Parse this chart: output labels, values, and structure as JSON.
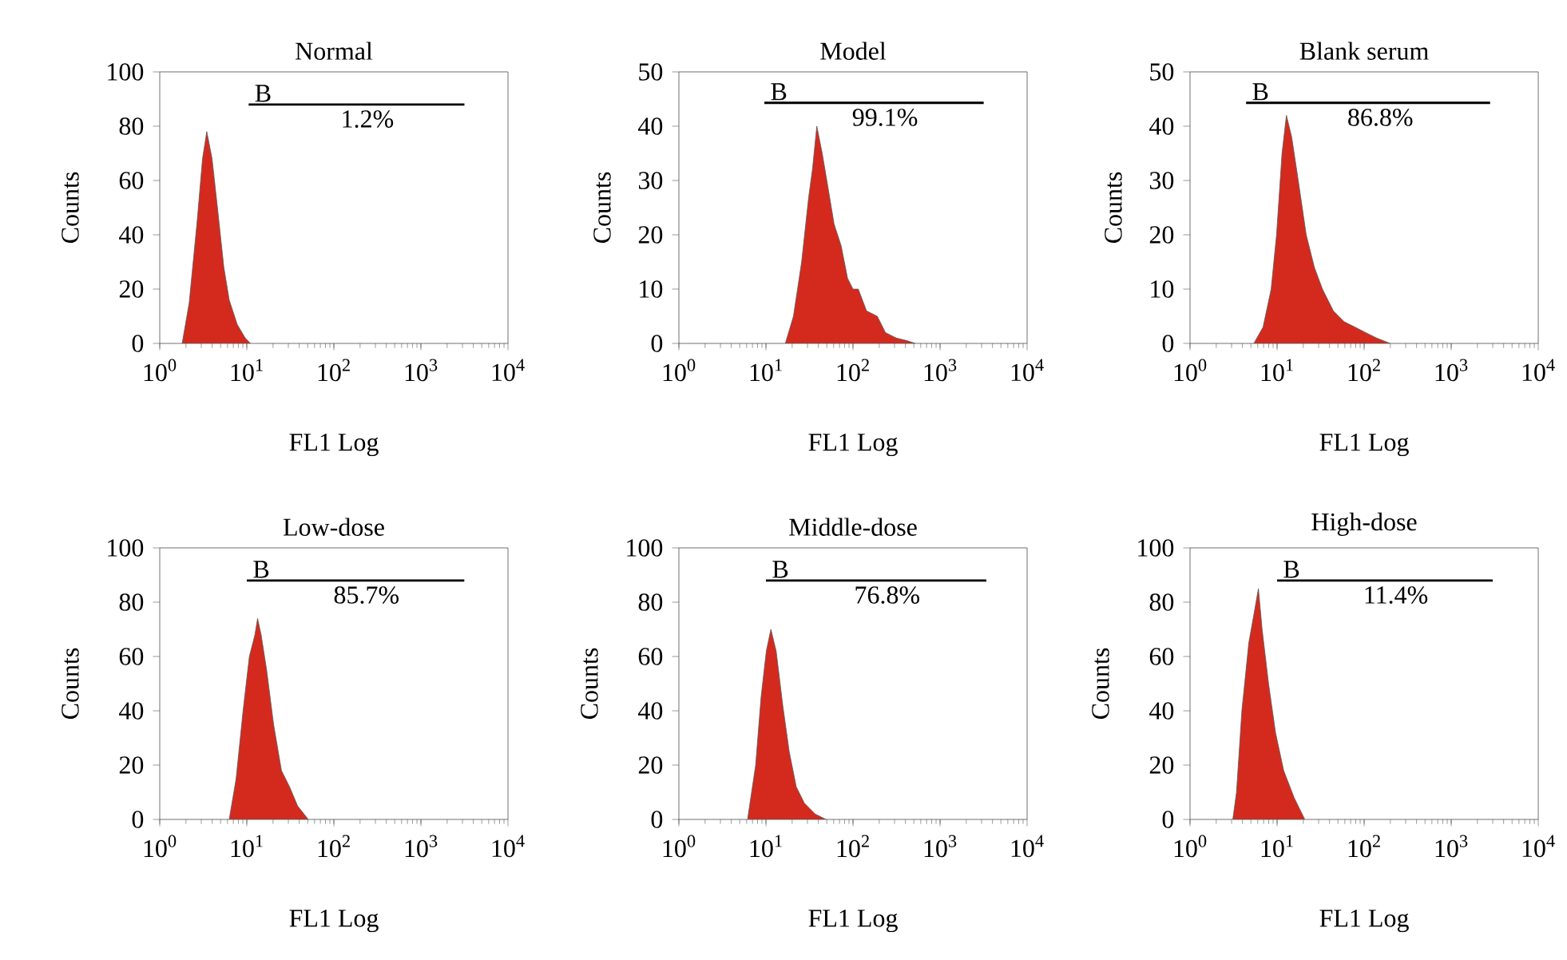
{
  "chart_data": [
    {
      "type": "area",
      "title": "Normal",
      "xlabel": "FL1 Log",
      "ylabel": "Counts",
      "log": "x",
      "xlim": [
        1,
        10000
      ],
      "ylim": [
        0,
        100
      ],
      "xticks": [
        {
          "value": 1,
          "label": "10$^{0}$"
        },
        {
          "value": 10,
          "label": "10$^{1}$"
        },
        {
          "value": 100,
          "label": "10$^{2}$"
        },
        {
          "value": 1000,
          "label": "10$^{3}$"
        },
        {
          "value": 10000,
          "label": "10$^{4}$"
        }
      ],
      "yticks": [
        0,
        20,
        40,
        60,
        80,
        100
      ],
      "series": [
        {
          "color": "#d42a1e",
          "x": [
            1.81,
            2.18,
            2.69,
            3.1,
            3.47,
            3.99,
            4.6,
            5.45,
            6.28,
            7.76,
            9.59,
            11.0
          ],
          "values": [
            0,
            15,
            45,
            68,
            78,
            68,
            50,
            28,
            16,
            7,
            2,
            0
          ]
        },
        {
          "type": "line",
          "color": "#000000",
          "x": [
            10.5,
            3160
          ],
          "values": [
            88,
            88
          ]
        }
      ],
      "annotations": [
        "B",
        "1.2%"
      ]
    },
    {
      "type": "area",
      "title": "Model",
      "xlabel": "FL1 Log",
      "ylabel": "Counts",
      "log": "x",
      "xlim": [
        1,
        10000
      ],
      "ylim": [
        0,
        50
      ],
      "xticks": [
        {
          "value": 1,
          "label": "10$^{0}$"
        },
        {
          "value": 10,
          "label": "10$^{1}$"
        },
        {
          "value": 100,
          "label": "10$^{2}$"
        },
        {
          "value": 1000,
          "label": "10$^{3}$"
        },
        {
          "value": 10000,
          "label": "10$^{4}$"
        }
      ],
      "yticks": [
        0,
        10,
        20,
        30,
        40,
        50
      ],
      "series": [
        {
          "color": "#d42a1e",
          "x": [
            16.7,
            20.7,
            25.7,
            31.0,
            34.2,
            38.4,
            44.3,
            52.5,
            60.6,
            73.0,
            86.6,
            100,
            115,
            143,
            190,
            236,
            314,
            418,
            518
          ],
          "values": [
            0,
            5,
            15,
            27,
            32,
            40,
            35,
            28,
            22,
            18,
            12,
            10,
            10,
            6,
            5,
            2,
            1,
            0.5,
            0
          ]
        },
        {
          "type": "line",
          "color": "#000000",
          "x": [
            9.6,
            3170
          ],
          "values": [
            44.3,
            44.3
          ]
        }
      ],
      "annotations": [
        "B",
        "99.1%"
      ]
    },
    {
      "type": "area",
      "title": "Blank serum",
      "xlabel": "FL1 Log",
      "ylabel": "Counts",
      "log": "x",
      "xlim": [
        1,
        10000
      ],
      "ylim": [
        0,
        50
      ],
      "xticks": [
        {
          "value": 1,
          "label": "10$^{0}$"
        },
        {
          "value": 10,
          "label": "10$^{1}$"
        },
        {
          "value": 100,
          "label": "10$^{2}$"
        },
        {
          "value": 1000,
          "label": "10$^{3}$"
        },
        {
          "value": 10000,
          "label": "10$^{4}$"
        }
      ],
      "yticks": [
        0,
        10,
        20,
        30,
        40,
        50
      ],
      "series": [
        {
          "color": "#d42a1e",
          "x": [
            5.41,
            6.9,
            8.55,
            9.86,
            11.4,
            12.8,
            14.7,
            17.5,
            21.6,
            26.8,
            33.2,
            44.3,
            58.9,
            78.4,
            104,
            139,
            199
          ],
          "values": [
            0,
            3,
            10,
            20,
            35,
            42,
            38,
            30,
            20,
            14,
            10,
            6,
            4,
            3,
            2,
            1,
            0
          ]
        },
        {
          "type": "line",
          "color": "#000000",
          "x": [
            4.4,
            2800
          ],
          "values": [
            44.3,
            44.3
          ]
        }
      ],
      "annotations": [
        "B",
        "86.8%"
      ]
    },
    {
      "type": "area",
      "title": "Low-dose",
      "xlabel": "FL1 Log",
      "ylabel": "Counts",
      "log": "x",
      "xlim": [
        1,
        10000
      ],
      "ylim": [
        0,
        100
      ],
      "xticks": [
        {
          "value": 1,
          "label": "10$^{0}$"
        },
        {
          "value": 10,
          "label": "10$^{1}$"
        },
        {
          "value": 100,
          "label": "10$^{2}$"
        },
        {
          "value": 1000,
          "label": "10$^{3}$"
        },
        {
          "value": 10000,
          "label": "10$^{4}$"
        }
      ],
      "yticks": [
        0,
        20,
        40,
        60,
        80,
        100
      ],
      "series": [
        {
          "color": "#d42a1e",
          "x": [
            6.28,
            7.54,
            9.06,
            10.7,
            12.4,
            13.3,
            14.6,
            16.9,
            20.3,
            25.0,
            31.0,
            38.3,
            50.8
          ],
          "values": [
            0,
            15,
            40,
            60,
            68,
            74,
            68,
            55,
            35,
            18,
            12,
            5,
            0
          ]
        },
        {
          "type": "line",
          "color": "#000000",
          "x": [
            10,
            3150
          ],
          "values": [
            88,
            88
          ]
        }
      ],
      "annotations": [
        "B",
        "85.7%"
      ]
    },
    {
      "type": "area",
      "title": "Middle-dose",
      "xlabel": "FL1 Log",
      "ylabel": "Counts",
      "log": "x",
      "xlim": [
        1,
        10000
      ],
      "ylim": [
        0,
        100
      ],
      "xticks": [
        {
          "value": 1,
          "label": "10$^{0}$"
        },
        {
          "value": 10,
          "label": "10$^{1}$"
        },
        {
          "value": 100,
          "label": "10$^{2}$"
        },
        {
          "value": 1000,
          "label": "10$^{3}$"
        },
        {
          "value": 10000,
          "label": "10$^{4}$"
        }
      ],
      "yticks": [
        0,
        20,
        40,
        60,
        80,
        100
      ],
      "series": [
        {
          "color": "#d42a1e",
          "x": [
            6.15,
            7.62,
            8.79,
            10.1,
            11.4,
            13.1,
            15.6,
            18.5,
            22.3,
            27.6,
            36.7,
            48.9
          ],
          "values": [
            0,
            20,
            45,
            62,
            70,
            62,
            42,
            25,
            12,
            6,
            2,
            0
          ]
        },
        {
          "type": "line",
          "color": "#000000",
          "x": [
            10,
            3400
          ],
          "values": [
            88,
            88
          ]
        }
      ],
      "annotations": [
        "B",
        "76.8%"
      ]
    },
    {
      "type": "area",
      "title": "High-dose",
      "xlabel": "FL1 Log",
      "ylabel": "Counts",
      "log": "x",
      "xlim": [
        1,
        10000
      ],
      "ylim": [
        0,
        100
      ],
      "xticks": [
        {
          "value": 1,
          "label": "10$^{0}$"
        },
        {
          "value": 10,
          "label": "10$^{1}$"
        },
        {
          "value": 100,
          "label": "10$^{2}$"
        },
        {
          "value": 1000,
          "label": "10$^{3}$"
        },
        {
          "value": 10000,
          "label": "10$^{4}$"
        }
      ],
      "yticks": [
        0,
        20,
        40,
        60,
        80,
        100
      ],
      "series": [
        {
          "color": "#d42a1e",
          "x": [
            3.1,
            3.42,
            3.94,
            4.73,
            5.45,
            6.1,
            6.73,
            7.98,
            9.59,
            11.9,
            15.7,
            20.8
          ],
          "values": [
            0,
            10,
            40,
            65,
            76,
            85,
            70,
            50,
            32,
            18,
            8,
            0
          ]
        },
        {
          "type": "line",
          "color": "#000000",
          "x": [
            10,
            3000
          ],
          "values": [
            88,
            88
          ]
        }
      ],
      "annotations": [
        "B",
        "11.4%"
      ]
    }
  ]
}
